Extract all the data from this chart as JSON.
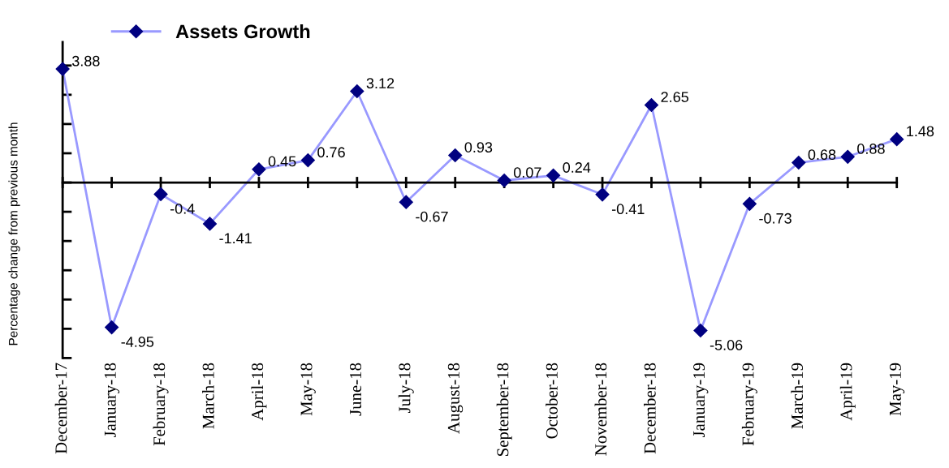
{
  "chart_data": {
    "type": "line",
    "ylabel": "Percentage change from previous month",
    "categories": [
      "December-17",
      "January-18",
      "February-18",
      "March-18",
      "April-18",
      "May-18",
      "June-18",
      "July-18",
      "August-18",
      "September-18",
      "October-18",
      "November-18",
      "December-18",
      "January-19",
      "February-19",
      "March-19",
      "April-19",
      "May-19"
    ],
    "series": [
      {
        "name": "Assets Growth",
        "color": "#9999ff",
        "colors": [
          "#000080",
          "#000080",
          "#000080",
          "#000080",
          "#000080",
          "#000080",
          "#000080",
          "#000080",
          "#000080",
          "#000080",
          "#000080",
          "#000080",
          "#000080",
          "#000080",
          "#000080",
          "#000080",
          "#000080",
          "#000080"
        ],
        "values": [
          3.88,
          -4.95,
          -0.4,
          -1.41,
          0.45,
          0.76,
          3.12,
          -0.67,
          0.93,
          0.07,
          0.24,
          -0.41,
          2.65,
          -5.06,
          -0.73,
          0.68,
          0.88,
          1.48
        ]
      }
    ],
    "ylim": [
      -6,
      4.8
    ],
    "yticks": [
      {
        "value": -6,
        "label": null
      },
      {
        "value": -5,
        "label": null
      },
      {
        "value": -4,
        "label": null
      },
      {
        "value": -3,
        "label": null
      },
      {
        "value": -2,
        "label": null
      },
      {
        "value": -1,
        "label": null
      },
      {
        "value": 0,
        "label": null
      },
      {
        "value": 1,
        "label": null
      },
      {
        "value": 2,
        "label": null
      },
      {
        "value": 3,
        "label": null
      },
      {
        "value": 4,
        "label": null
      }
    ],
    "data_labels": true,
    "marker": "diamond",
    "line_style": "solid",
    "grid": false,
    "legend": "top left"
  }
}
